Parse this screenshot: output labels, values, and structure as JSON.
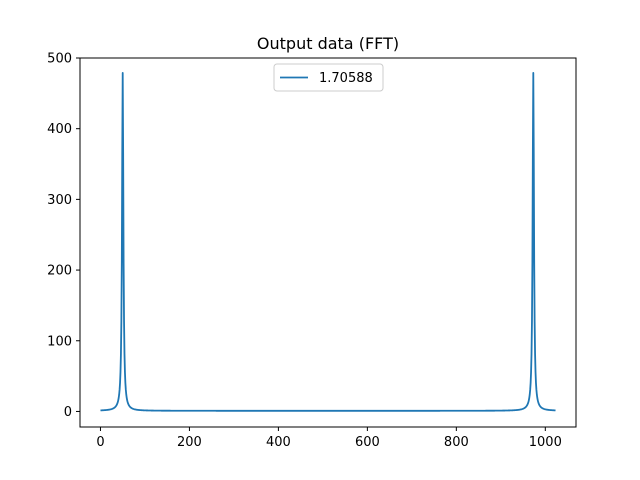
{
  "chart_data": {
    "type": "line",
    "title": "Output data (FFT)",
    "xlabel": "",
    "ylabel": "",
    "xlim": [
      -46,
      1069
    ],
    "ylim": [
      -22,
      500
    ],
    "x_ticks": [
      0,
      200,
      400,
      600,
      800,
      1000
    ],
    "y_ticks": [
      0,
      100,
      200,
      300,
      400,
      500
    ],
    "grid": false,
    "legend": {
      "position": "upper-center"
    },
    "series": [
      {
        "name": "1.70588",
        "color": "#1f77b4",
        "peaks": [
          50,
          973
        ],
        "peak_value": 478,
        "baseline": 0.9,
        "n": 1024
      }
    ]
  }
}
